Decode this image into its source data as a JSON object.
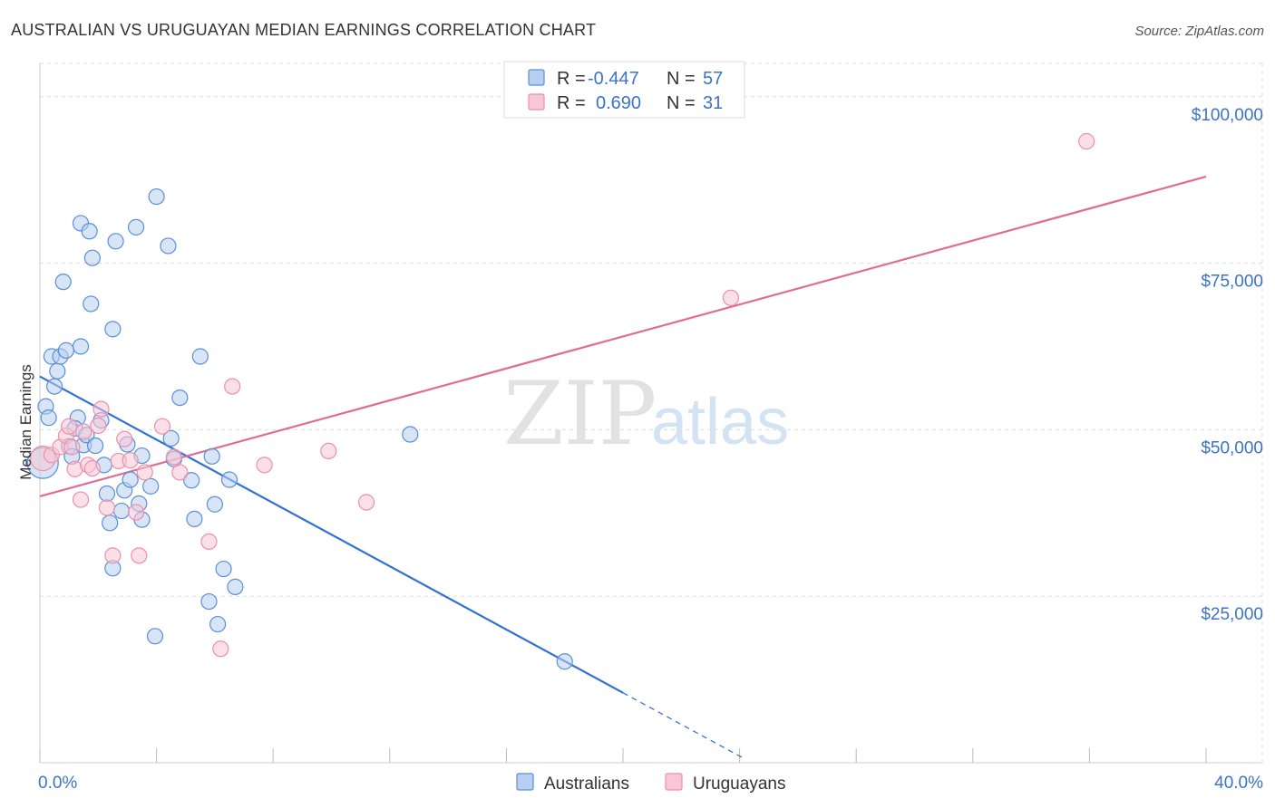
{
  "colors": {
    "blue_stroke": "#5b8fd6",
    "blue_fill": "#b7cff0",
    "blue_line": "#2f72d4",
    "pink_stroke": "#ec8fab",
    "pink_fill": "#f8c7d6",
    "pink_line": "#e06c93",
    "tick_label": "#3b74c7",
    "grid": "#dddddd"
  },
  "chart_data": {
    "type": "scatter",
    "title": "AUSTRALIAN VS URUGUAYAN MEDIAN EARNINGS CORRELATION CHART",
    "source": "Source: ZipAtlas.com",
    "xlabel": "",
    "ylabel": "Median Earnings",
    "xlim": [
      0,
      40
    ],
    "ylim": [
      0,
      105000
    ],
    "x_tick_labels": [
      "0.0%",
      "40.0%"
    ],
    "y_ticks": [
      {
        "value": 25000,
        "label": "$25,000"
      },
      {
        "value": 50000,
        "label": "$50,000"
      },
      {
        "value": 75000,
        "label": "$75,000"
      },
      {
        "value": 100000,
        "label": "$100,000"
      }
    ],
    "grid": true,
    "watermark": {
      "zip": "ZIP",
      "atlas": "atlas"
    },
    "legend": {
      "position": "top-center",
      "entries": [
        {
          "r_label": "R =",
          "r": "-0.447",
          "n_label": "N =",
          "n": "57"
        },
        {
          "r_label": "R =",
          "r": "0.690",
          "n_label": "N =",
          "n": "31"
        }
      ]
    },
    "series": [
      {
        "name": "Australians",
        "color": "blue",
        "trend": {
          "x1": 0.0,
          "y1": 58000,
          "x2": 20.0,
          "y2": 10500,
          "dash_to_x": 24.2
        },
        "points": [
          [
            0.1,
            45000,
            2.0
          ],
          [
            0.2,
            53500,
            1.0
          ],
          [
            0.3,
            51800,
            1.0
          ],
          [
            0.4,
            61000,
            1.0
          ],
          [
            0.5,
            56500,
            1.0
          ],
          [
            0.6,
            58800,
            1.0
          ],
          [
            0.7,
            61000,
            1.0
          ],
          [
            0.8,
            72200,
            1.0
          ],
          [
            0.9,
            61900,
            1.0
          ],
          [
            1.0,
            47500,
            1.0
          ],
          [
            1.1,
            46000,
            1.0
          ],
          [
            1.3,
            51800,
            1.0
          ],
          [
            1.2,
            50200,
            1.0
          ],
          [
            1.4,
            81000,
            1.0
          ],
          [
            1.4,
            62500,
            1.0
          ],
          [
            1.5,
            47700,
            1.0
          ],
          [
            1.6,
            49200,
            1.0
          ],
          [
            1.7,
            79800,
            1.0
          ],
          [
            1.75,
            68900,
            1.0
          ],
          [
            1.8,
            75800,
            1.0
          ],
          [
            1.9,
            47600,
            1.0
          ],
          [
            2.1,
            51400,
            1.0
          ],
          [
            2.2,
            44700,
            1.0
          ],
          [
            2.3,
            40400,
            1.0
          ],
          [
            2.4,
            36000,
            1.0
          ],
          [
            2.5,
            29200,
            1.0
          ],
          [
            2.5,
            65100,
            1.0
          ],
          [
            2.6,
            78300,
            1.0
          ],
          [
            2.8,
            37800,
            1.0
          ],
          [
            2.9,
            40900,
            1.0
          ],
          [
            3.0,
            47800,
            1.0
          ],
          [
            3.1,
            42500,
            1.0
          ],
          [
            3.3,
            80400,
            1.0
          ],
          [
            3.4,
            38900,
            1.0
          ],
          [
            3.5,
            46100,
            1.0
          ],
          [
            3.5,
            36500,
            1.0
          ],
          [
            3.8,
            41500,
            1.0
          ],
          [
            3.95,
            19000,
            1.0
          ],
          [
            4.0,
            85000,
            1.0
          ],
          [
            4.4,
            77600,
            1.0
          ],
          [
            4.5,
            48700,
            1.0
          ],
          [
            4.6,
            45600,
            1.0
          ],
          [
            4.8,
            54800,
            1.0
          ],
          [
            5.2,
            42400,
            1.0
          ],
          [
            5.3,
            36600,
            1.0
          ],
          [
            5.5,
            61000,
            1.0
          ],
          [
            5.8,
            24200,
            1.0
          ],
          [
            5.9,
            46000,
            1.0
          ],
          [
            6.0,
            38800,
            1.0
          ],
          [
            6.1,
            20800,
            1.0
          ],
          [
            6.3,
            29100,
            1.0
          ],
          [
            6.5,
            42500,
            1.0
          ],
          [
            6.7,
            26400,
            1.0
          ],
          [
            12.7,
            49300,
            1.0
          ],
          [
            18.0,
            15200,
            1.0
          ]
        ]
      },
      {
        "name": "Uruguayans",
        "color": "pink",
        "trend": {
          "x1": 0.0,
          "y1": 40000,
          "x2": 40.0,
          "y2": 88000
        },
        "points": [
          [
            0.1,
            45700,
            1.6
          ],
          [
            0.4,
            46200,
            1.0
          ],
          [
            0.7,
            47400,
            1.0
          ],
          [
            0.9,
            49100,
            1.0
          ],
          [
            1.0,
            50500,
            1.0
          ],
          [
            1.1,
            47400,
            1.0
          ],
          [
            1.2,
            44100,
            1.0
          ],
          [
            1.4,
            39500,
            1.0
          ],
          [
            1.5,
            49700,
            1.0
          ],
          [
            1.65,
            44700,
            1.0
          ],
          [
            1.8,
            44200,
            1.0
          ],
          [
            2.0,
            50600,
            1.0
          ],
          [
            2.1,
            53100,
            1.0
          ],
          [
            2.3,
            38300,
            1.0
          ],
          [
            2.5,
            31100,
            1.0
          ],
          [
            2.7,
            45300,
            1.0
          ],
          [
            2.9,
            48600,
            1.0
          ],
          [
            3.1,
            45400,
            1.0
          ],
          [
            3.3,
            37600,
            1.0
          ],
          [
            3.4,
            31100,
            1.0
          ],
          [
            3.6,
            43600,
            1.0
          ],
          [
            4.2,
            50500,
            1.0
          ],
          [
            4.6,
            45900,
            1.0
          ],
          [
            4.8,
            43600,
            1.0
          ],
          [
            5.8,
            33200,
            1.0
          ],
          [
            6.2,
            17100,
            1.0
          ],
          [
            6.6,
            56500,
            1.0
          ],
          [
            7.7,
            44700,
            1.0
          ],
          [
            9.9,
            46800,
            1.0
          ],
          [
            11.2,
            39100,
            1.0
          ],
          [
            23.7,
            69800,
            1.0
          ],
          [
            35.9,
            93300,
            1.0
          ]
        ]
      }
    ]
  }
}
